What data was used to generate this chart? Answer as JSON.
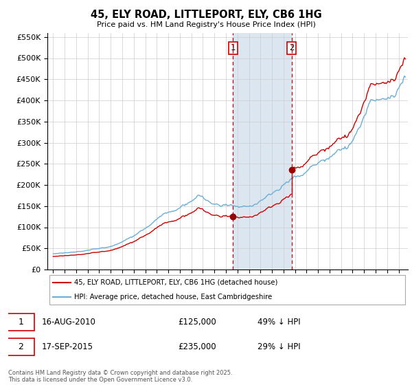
{
  "title": "45, ELY ROAD, LITTLEPORT, ELY, CB6 1HG",
  "subtitle": "Price paid vs. HM Land Registry's House Price Index (HPI)",
  "yticks": [
    0,
    50000,
    100000,
    150000,
    200000,
    250000,
    300000,
    350000,
    400000,
    450000,
    500000,
    550000
  ],
  "ytick_labels": [
    "£0",
    "£50K",
    "£100K",
    "£150K",
    "£200K",
    "£250K",
    "£300K",
    "£350K",
    "£400K",
    "£450K",
    "£500K",
    "£550K"
  ],
  "hpi_color": "#6baed6",
  "price_color": "#cc0000",
  "marker_color": "#990000",
  "sale1_date": 2010.625,
  "sale1_price": 125000,
  "sale1_label": "1",
  "sale2_date": 2015.71,
  "sale2_price": 235000,
  "sale2_label": "2",
  "vline_color": "#cc0000",
  "shade_color": "#dce6f1",
  "legend_label1": "45, ELY ROAD, LITTLEPORT, ELY, CB6 1HG (detached house)",
  "legend_label2": "HPI: Average price, detached house, East Cambridgeshire",
  "table_row1": [
    "1",
    "16-AUG-2010",
    "£125,000",
    "49% ↓ HPI"
  ],
  "table_row2": [
    "2",
    "17-SEP-2015",
    "£235,000",
    "29% ↓ HPI"
  ],
  "footnote": "Contains HM Land Registry data © Crown copyright and database right 2025.\nThis data is licensed under the Open Government Licence v3.0.",
  "background_color": "#ffffff",
  "grid_color": "#cccccc",
  "xlim_left": 1994.5,
  "xlim_right": 2025.8,
  "ylim_bottom": 0,
  "ylim_top": 560000
}
